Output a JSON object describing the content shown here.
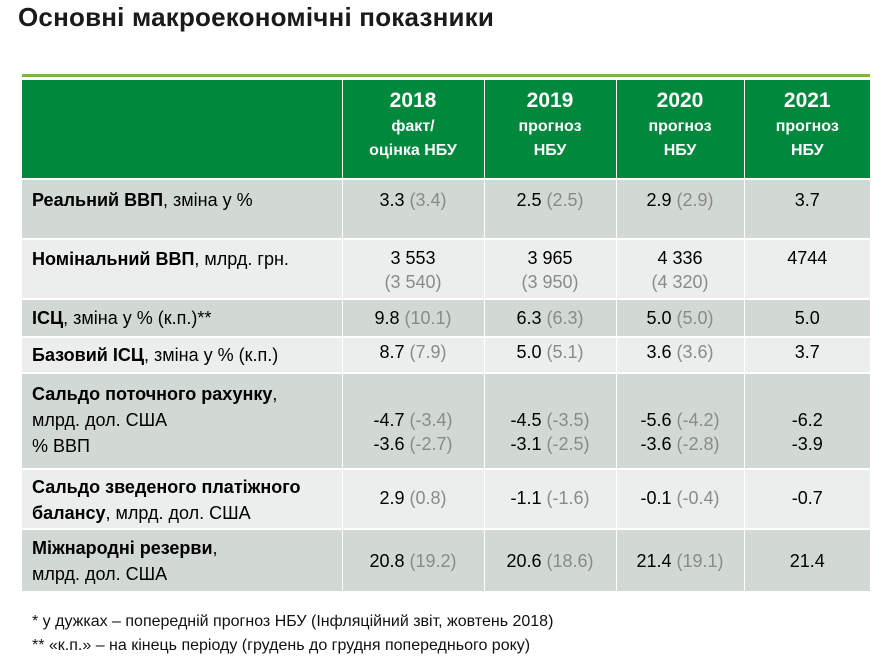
{
  "title": "Основні макроекономічні показники",
  "header": {
    "columns": [
      {
        "year": "2018",
        "sub1": "факт/",
        "sub2": "оцінка НБУ"
      },
      {
        "year": "2019",
        "sub1": "прогноз",
        "sub2": "НБУ"
      },
      {
        "year": "2020",
        "sub1": "прогноз",
        "sub2": "НБУ"
      },
      {
        "year": "2021",
        "sub1": "прогноз",
        "sub2": "НБУ"
      }
    ]
  },
  "rows": [
    {
      "label_bold": "Реальний ВВП",
      "label_rest": ", зміна у %",
      "cells": [
        {
          "v": "3.3",
          "p": "(3.4)"
        },
        {
          "v": "2.5",
          "p": "(2.5)"
        },
        {
          "v": "2.9",
          "p": "(2.9)"
        },
        {
          "v": "3.7",
          "p": ""
        }
      ]
    },
    {
      "label_bold": "Номінальний ВВП",
      "label_rest": ", млрд. грн.",
      "cells": [
        {
          "v": "3 553",
          "p": "(3 540)"
        },
        {
          "v": "3 965",
          "p": "(3 950)"
        },
        {
          "v": "4 336",
          "p": "(4 320)"
        },
        {
          "v": "4744",
          "p": ""
        }
      ]
    },
    {
      "label_bold": "ІСЦ",
      "label_rest": ", зміна у % (к.п.)**",
      "cells": [
        {
          "v": "9.8",
          "p": "(10.1)"
        },
        {
          "v": "6.3",
          "p": "(6.3)"
        },
        {
          "v": "5.0",
          "p": "(5.0)"
        },
        {
          "v": "5.0",
          "p": ""
        }
      ]
    },
    {
      "label_bold": "Базовий ІСЦ",
      "label_rest": ", зміна у % (к.п.)",
      "cells": [
        {
          "v": "8.7",
          "p": "(7.9)"
        },
        {
          "v": "5.0",
          "p": "(5.1)"
        },
        {
          "v": "3.6",
          "p": "(3.6)"
        },
        {
          "v": "3.7",
          "p": ""
        }
      ]
    },
    {
      "label_bold": "Сальдо поточного рахунку",
      "label_rest": ",",
      "label_line2": "млрд. дол. США",
      "label_line3": "% ВВП",
      "cells": [
        {
          "v": "-4.7",
          "p": "(-3.4)",
          "v2": "-3.6",
          "p2": "(-2.7)"
        },
        {
          "v": "-4.5",
          "p": "(-3.5)",
          "v2": "-3.1",
          "p2": "(-2.5)"
        },
        {
          "v": "-5.6",
          "p": "(-4.2)",
          "v2": "-3.6",
          "p2": "(-2.8)"
        },
        {
          "v": "-6.2",
          "p": "",
          "v2": "-3.9",
          "p2": ""
        }
      ]
    },
    {
      "label_bold": "Сальдо зведеного платіжного",
      "label_bold2": "балансу",
      "label_rest2": ", млрд. дол. США",
      "cells": [
        {
          "v": "2.9",
          "p": "(0.8)"
        },
        {
          "v": "-1.1",
          "p": "(-1.6)"
        },
        {
          "v": "-0.1",
          "p": "(-0.4)"
        },
        {
          "v": "-0.7",
          "p": ""
        }
      ]
    },
    {
      "label_bold": "Міжнародні резерви",
      "label_rest": ",",
      "label_line2": "млрд. дол. США",
      "cells": [
        {
          "v": "20.8",
          "p": "(19.2)"
        },
        {
          "v": "20.6",
          "p": "(18.6)"
        },
        {
          "v": "21.4",
          "p": "(19.1)"
        },
        {
          "v": "21.4",
          "p": ""
        }
      ]
    }
  ],
  "footnotes": [
    "* у дужках – попередній прогноз НБУ (Інфляційний звіт, жовтень 2018)",
    "** «к.п.» – на кінець періоду (грудень до грудня попереднього року)"
  ]
}
